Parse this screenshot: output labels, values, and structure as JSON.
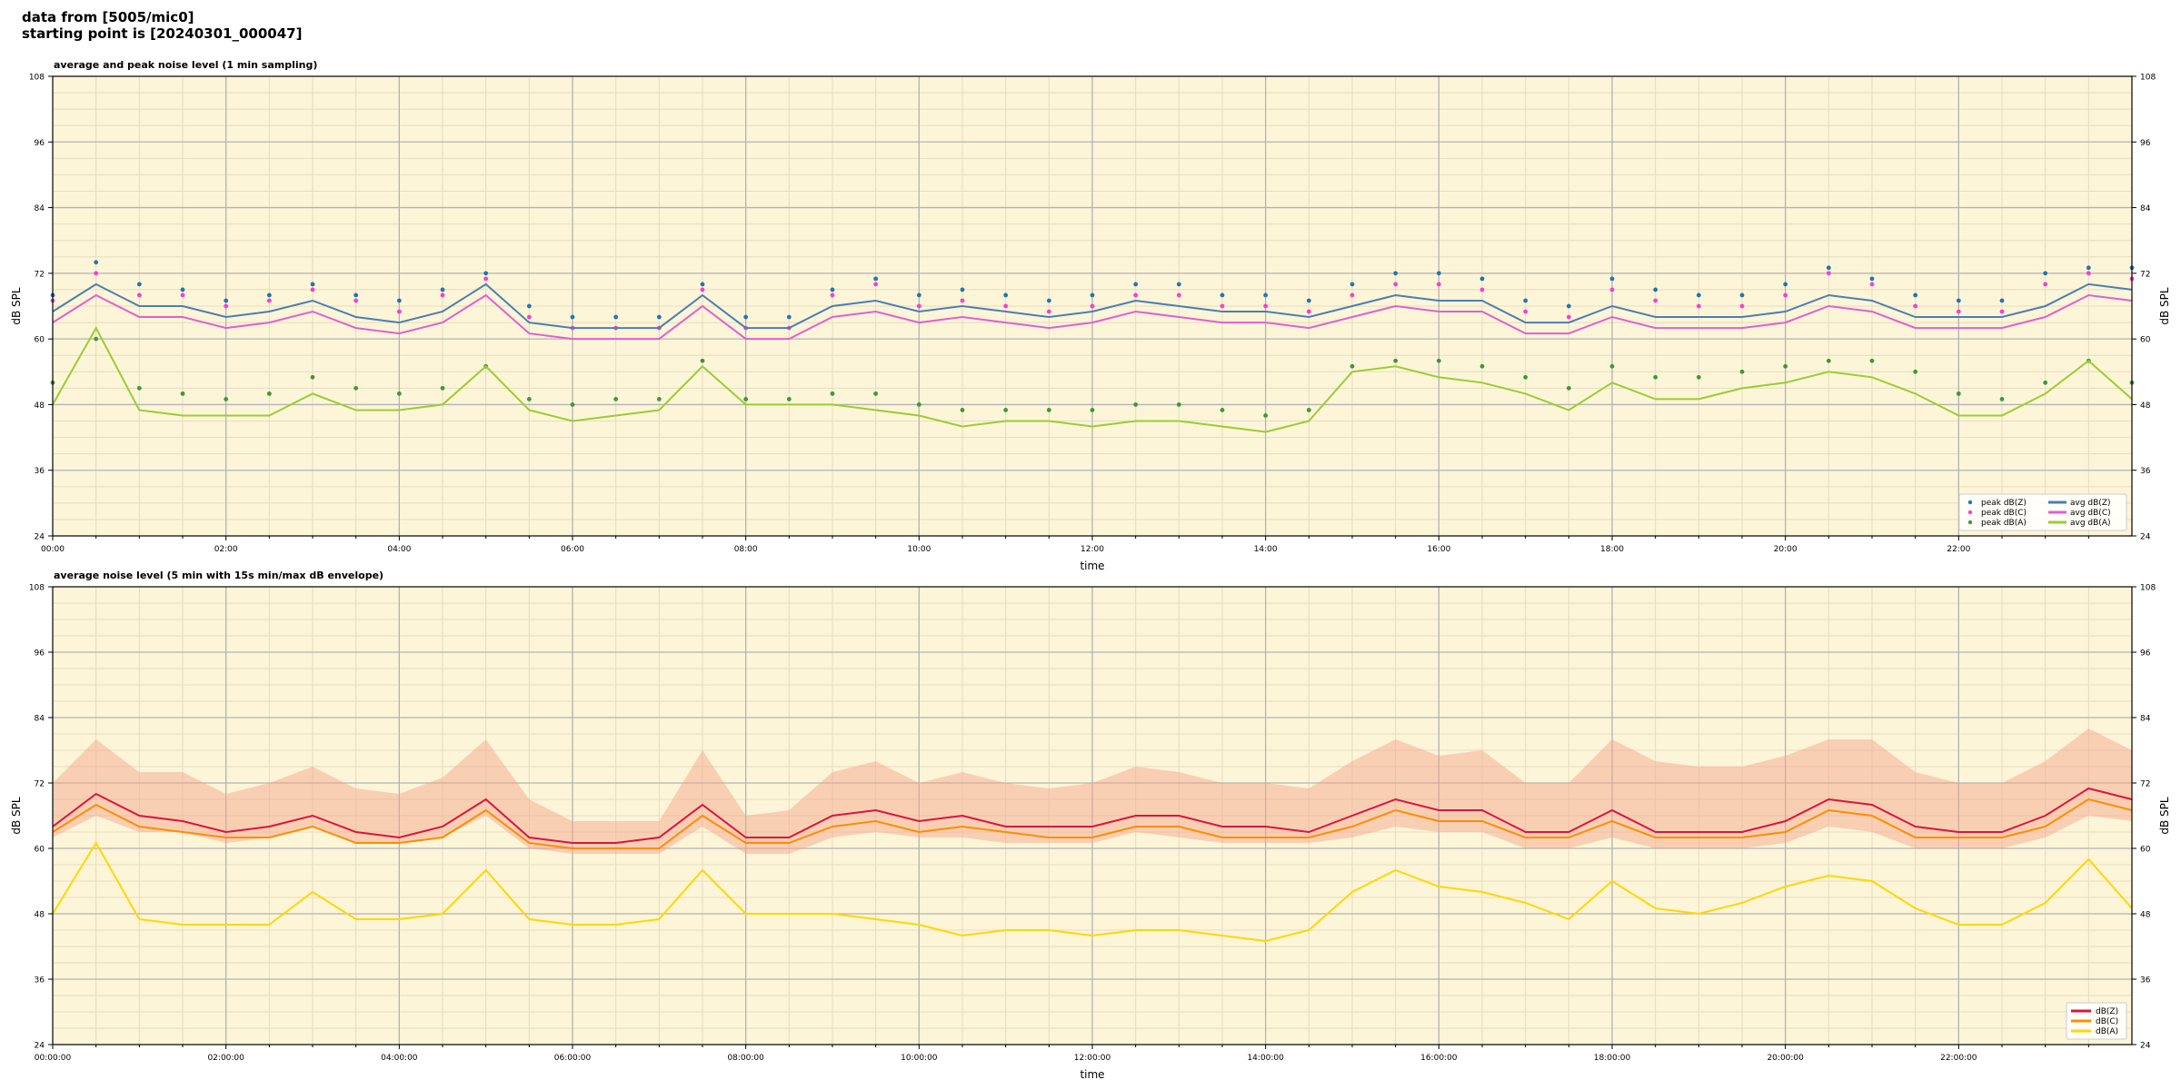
{
  "header": {
    "line1": "data from [5005/mic0]",
    "line2": "starting point is [20240301_000047]"
  },
  "colors": {
    "plot_bg": "#fdf5d8",
    "grid_major": "#b3b3b3",
    "grid_minor": "#e6dcc0",
    "peak_z": "#1f77b4",
    "peak_c": "#ff3bd2",
    "peak_a": "#3a9a3a",
    "avg_z": "#4a7fb0",
    "avg_c": "#e060d0",
    "avg_a": "#9acd32",
    "db_z": "#dc143c",
    "db_c": "#ff8c00",
    "db_a": "#ffd700",
    "envelope": "#f4a28a"
  },
  "chart_data": [
    {
      "type": "line",
      "title": "average and peak noise level (1 min sampling)",
      "xlabel": "time",
      "ylabel": "dB SPL",
      "ylabel_right": "dB SPL",
      "xlim": [
        0,
        24
      ],
      "xtick_labels": [
        "00:00",
        "02:00",
        "04:00",
        "06:00",
        "08:00",
        "10:00",
        "12:00",
        "14:00",
        "16:00",
        "18:00",
        "20:00",
        "22:00"
      ],
      "ylim": [
        24,
        108
      ],
      "yticks": [
        24,
        36,
        48,
        60,
        72,
        84,
        96,
        108
      ],
      "grid": true,
      "legend_position": "lower-right",
      "legend_columns": 2,
      "x_units": "hours since 00:00",
      "x": [
        0.0,
        0.5,
        1.0,
        1.5,
        2.0,
        2.5,
        3.0,
        3.5,
        4.0,
        4.5,
        5.0,
        5.5,
        6.0,
        6.5,
        7.0,
        7.5,
        8.0,
        8.5,
        9.0,
        9.5,
        10.0,
        10.5,
        11.0,
        11.5,
        12.0,
        12.5,
        13.0,
        13.5,
        14.0,
        14.5,
        15.0,
        15.5,
        16.0,
        16.5,
        17.0,
        17.5,
        18.0,
        18.5,
        19.0,
        19.5,
        20.0,
        20.5,
        21.0,
        21.5,
        22.0,
        22.5,
        23.0,
        23.5,
        24.0
      ],
      "series": [
        {
          "name": "peak dB(Z)",
          "kind": "points",
          "values": [
            68,
            74,
            70,
            69,
            67,
            68,
            70,
            68,
            67,
            69,
            72,
            66,
            64,
            64,
            64,
            70,
            64,
            64,
            69,
            71,
            68,
            69,
            68,
            67,
            68,
            70,
            70,
            68,
            68,
            67,
            70,
            72,
            72,
            71,
            67,
            66,
            71,
            69,
            68,
            68,
            70,
            73,
            71,
            68,
            67,
            67,
            72,
            73,
            73
          ]
        },
        {
          "name": "peak dB(C)",
          "kind": "points",
          "values": [
            67,
            72,
            68,
            68,
            66,
            67,
            69,
            67,
            65,
            68,
            71,
            64,
            62,
            62,
            62,
            69,
            62,
            62,
            68,
            70,
            66,
            67,
            66,
            65,
            66,
            68,
            68,
            66,
            66,
            65,
            68,
            70,
            70,
            69,
            65,
            64,
            69,
            67,
            66,
            66,
            68,
            72,
            70,
            66,
            65,
            65,
            70,
            72,
            71
          ]
        },
        {
          "name": "peak dB(A)",
          "kind": "points",
          "values": [
            52,
            60,
            51,
            50,
            49,
            50,
            53,
            51,
            50,
            51,
            55,
            49,
            48,
            49,
            49,
            56,
            49,
            49,
            50,
            50,
            48,
            47,
            47,
            47,
            47,
            48,
            48,
            47,
            46,
            47,
            55,
            56,
            56,
            55,
            53,
            51,
            55,
            53,
            53,
            54,
            55,
            56,
            56,
            54,
            50,
            49,
            52,
            56,
            52
          ]
        },
        {
          "name": "avg dB(Z)",
          "kind": "line",
          "values": [
            65,
            70,
            66,
            66,
            64,
            65,
            67,
            64,
            63,
            65,
            70,
            63,
            62,
            62,
            62,
            68,
            62,
            62,
            66,
            67,
            65,
            66,
            65,
            64,
            65,
            67,
            66,
            65,
            65,
            64,
            66,
            68,
            67,
            67,
            63,
            63,
            66,
            64,
            64,
            64,
            65,
            68,
            67,
            64,
            64,
            64,
            66,
            70,
            69
          ]
        },
        {
          "name": "avg dB(C)",
          "kind": "line",
          "values": [
            63,
            68,
            64,
            64,
            62,
            63,
            65,
            62,
            61,
            63,
            68,
            61,
            60,
            60,
            60,
            66,
            60,
            60,
            64,
            65,
            63,
            64,
            63,
            62,
            63,
            65,
            64,
            63,
            63,
            62,
            64,
            66,
            65,
            65,
            61,
            61,
            64,
            62,
            62,
            62,
            63,
            66,
            65,
            62,
            62,
            62,
            64,
            68,
            67
          ]
        },
        {
          "name": "avg dB(A)",
          "kind": "line",
          "values": [
            48,
            62,
            47,
            46,
            46,
            46,
            50,
            47,
            47,
            48,
            55,
            47,
            45,
            46,
            47,
            55,
            48,
            48,
            48,
            47,
            46,
            44,
            45,
            45,
            44,
            45,
            45,
            44,
            43,
            45,
            54,
            55,
            53,
            52,
            50,
            47,
            52,
            49,
            49,
            51,
            52,
            54,
            53,
            50,
            46,
            46,
            50,
            56,
            49
          ]
        }
      ]
    },
    {
      "type": "line",
      "title": "average noise level (5 min with 15s min/max dB envelope)",
      "xlabel": "time",
      "ylabel": "dB SPL",
      "ylabel_right": "dB SPL",
      "xlim": [
        0,
        24
      ],
      "xtick_labels": [
        "00:00:00",
        "02:00:00",
        "04:00:00",
        "06:00:00",
        "08:00:00",
        "10:00:00",
        "12:00:00",
        "14:00:00",
        "16:00:00",
        "18:00:00",
        "20:00:00",
        "22:00:00"
      ],
      "ylim": [
        24,
        108
      ],
      "yticks": [
        24,
        36,
        48,
        60,
        72,
        84,
        96,
        108
      ],
      "grid": true,
      "legend_position": "lower-right",
      "legend_columns": 1,
      "x_units": "hours since 00:00",
      "x": [
        0.0,
        0.5,
        1.0,
        1.5,
        2.0,
        2.5,
        3.0,
        3.5,
        4.0,
        4.5,
        5.0,
        5.5,
        6.0,
        6.5,
        7.0,
        7.5,
        8.0,
        8.5,
        9.0,
        9.5,
        10.0,
        10.5,
        11.0,
        11.5,
        12.0,
        12.5,
        13.0,
        13.5,
        14.0,
        14.5,
        15.0,
        15.5,
        16.0,
        16.5,
        17.0,
        17.5,
        18.0,
        18.5,
        19.0,
        19.5,
        20.0,
        20.5,
        21.0,
        21.5,
        22.0,
        22.5,
        23.0,
        23.5,
        24.0
      ],
      "envelope": {
        "min": [
          62,
          66,
          63,
          63,
          61,
          62,
          64,
          61,
          61,
          62,
          66,
          60,
          59,
          59,
          59,
          64,
          59,
          59,
          62,
          63,
          62,
          62,
          61,
          61,
          61,
          63,
          62,
          61,
          61,
          61,
          62,
          64,
          63,
          63,
          60,
          60,
          62,
          60,
          60,
          60,
          61,
          64,
          63,
          60,
          60,
          60,
          62,
          66,
          65
        ],
        "max": [
          72,
          80,
          74,
          74,
          70,
          72,
          75,
          71,
          70,
          73,
          80,
          69,
          65,
          65,
          65,
          78,
          66,
          67,
          74,
          76,
          72,
          74,
          72,
          71,
          72,
          75,
          74,
          72,
          72,
          71,
          76,
          80,
          77,
          78,
          72,
          72,
          80,
          76,
          75,
          75,
          77,
          80,
          80,
          74,
          72,
          72,
          76,
          82,
          78
        ]
      },
      "series": [
        {
          "name": "dB(Z)",
          "values": [
            64,
            70,
            66,
            65,
            63,
            64,
            66,
            63,
            62,
            64,
            69,
            62,
            61,
            61,
            62,
            68,
            62,
            62,
            66,
            67,
            65,
            66,
            64,
            64,
            64,
            66,
            66,
            64,
            64,
            63,
            66,
            69,
            67,
            67,
            63,
            63,
            67,
            63,
            63,
            63,
            65,
            69,
            68,
            64,
            63,
            63,
            66,
            71,
            69
          ]
        },
        {
          "name": "dB(C)",
          "values": [
            63,
            68,
            64,
            63,
            62,
            62,
            64,
            61,
            61,
            62,
            67,
            61,
            60,
            60,
            60,
            66,
            61,
            61,
            64,
            65,
            63,
            64,
            63,
            62,
            62,
            64,
            64,
            62,
            62,
            62,
            64,
            67,
            65,
            65,
            62,
            62,
            65,
            62,
            62,
            62,
            63,
            67,
            66,
            62,
            62,
            62,
            64,
            69,
            67
          ]
        },
        {
          "name": "dB(A)",
          "values": [
            48,
            61,
            47,
            46,
            46,
            46,
            52,
            47,
            47,
            48,
            56,
            47,
            46,
            46,
            47,
            56,
            48,
            48,
            48,
            47,
            46,
            44,
            45,
            45,
            44,
            45,
            45,
            44,
            43,
            45,
            52,
            56,
            53,
            52,
            50,
            47,
            54,
            49,
            48,
            50,
            53,
            55,
            54,
            49,
            46,
            46,
            50,
            58,
            49
          ]
        }
      ]
    }
  ]
}
